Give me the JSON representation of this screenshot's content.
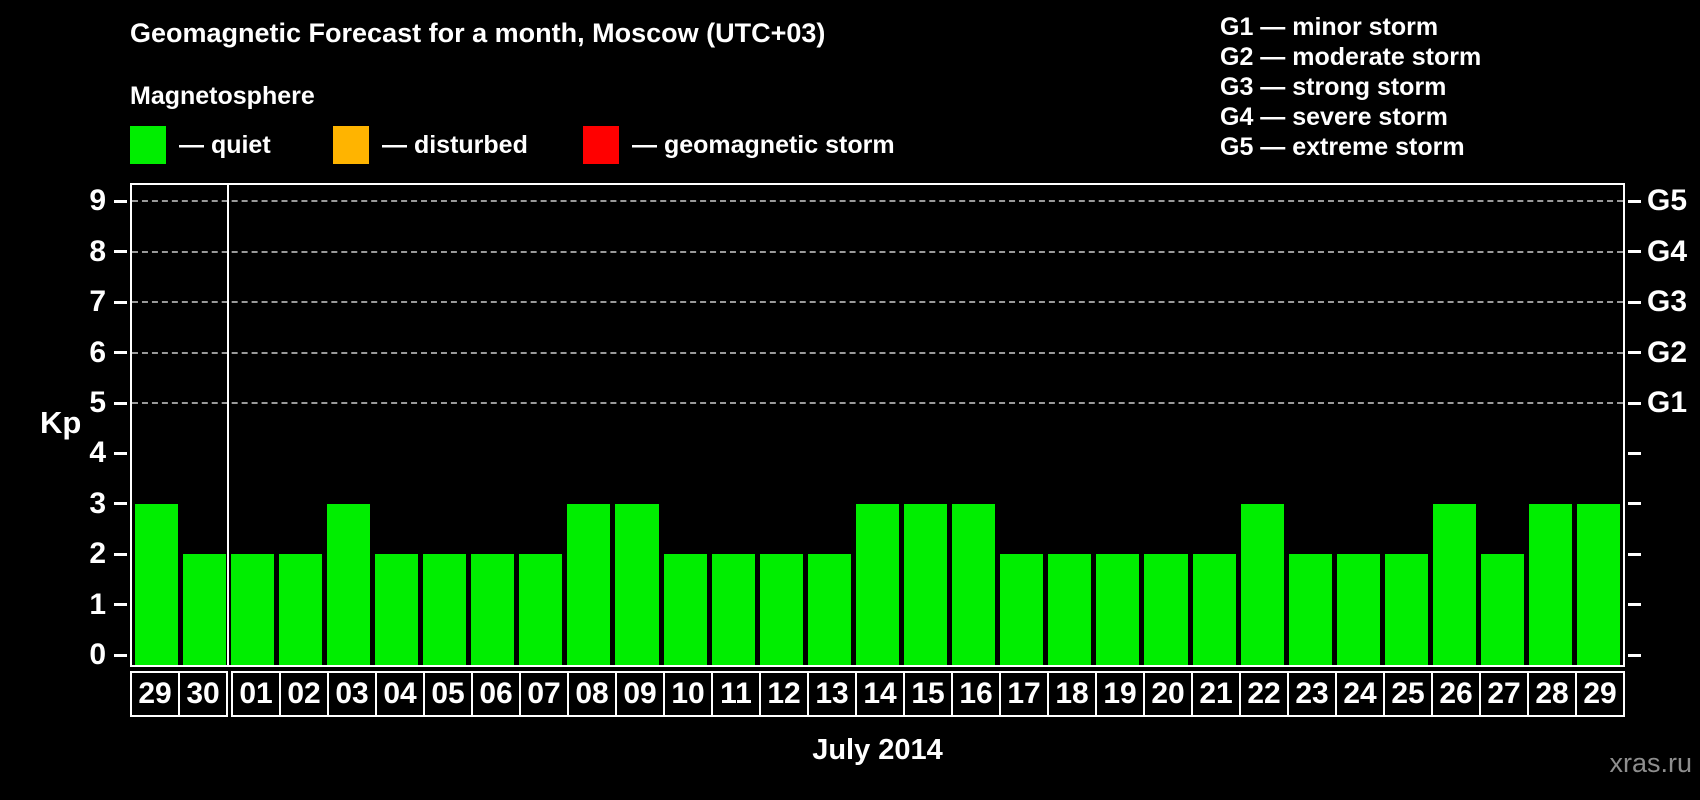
{
  "page": {
    "watermark": "xras.ru"
  },
  "header": {
    "title": "Geomagnetic Forecast for a month, Moscow (UTC+03)",
    "subtitle": "Magnetosphere",
    "legend": [
      {
        "name": "quiet",
        "color": "#00ee00",
        "label": "— quiet"
      },
      {
        "name": "disturbed",
        "color": "#ffb400",
        "label": "— disturbed"
      },
      {
        "name": "geomagnetic-storm",
        "color": "#ff0000",
        "label": "— geomagnetic storm"
      }
    ],
    "storm_scale_legend": [
      "G1 — minor storm",
      "G2 — moderate storm",
      "G3 — strong storm",
      "G4 — severe storm",
      "G5 — extreme storm"
    ]
  },
  "chart_data": {
    "type": "bar",
    "title": "Geomagnetic Forecast for a month, Moscow (UTC+03)",
    "xlabel": "July 2014",
    "ylabel": "Kp",
    "ylim": [
      0,
      9
    ],
    "categories": [
      "29",
      "30",
      "01",
      "02",
      "03",
      "04",
      "05",
      "06",
      "07",
      "08",
      "09",
      "10",
      "11",
      "12",
      "13",
      "14",
      "15",
      "16",
      "17",
      "18",
      "19",
      "20",
      "21",
      "22",
      "23",
      "24",
      "25",
      "26",
      "27",
      "28",
      "29"
    ],
    "values": [
      3,
      2,
      2,
      2,
      3,
      2,
      2,
      2,
      2,
      3,
      3,
      2,
      2,
      2,
      2,
      3,
      3,
      3,
      2,
      2,
      2,
      2,
      2,
      3,
      2,
      2,
      2,
      3,
      2,
      3,
      3
    ],
    "bar_color": "#00ee00",
    "y_ticks": [
      0,
      1,
      2,
      3,
      4,
      5,
      6,
      7,
      8,
      9
    ],
    "gridlines": [
      5,
      6,
      7,
      8,
      9
    ],
    "right_axis": [
      {
        "value": 5,
        "label": "G1"
      },
      {
        "value": 6,
        "label": "G2"
      },
      {
        "value": 7,
        "label": "G3"
      },
      {
        "value": 8,
        "label": "G4"
      },
      {
        "value": 9,
        "label": "G5"
      }
    ],
    "month_separator_after_index": 1,
    "grid": true,
    "legend_position": "top"
  }
}
